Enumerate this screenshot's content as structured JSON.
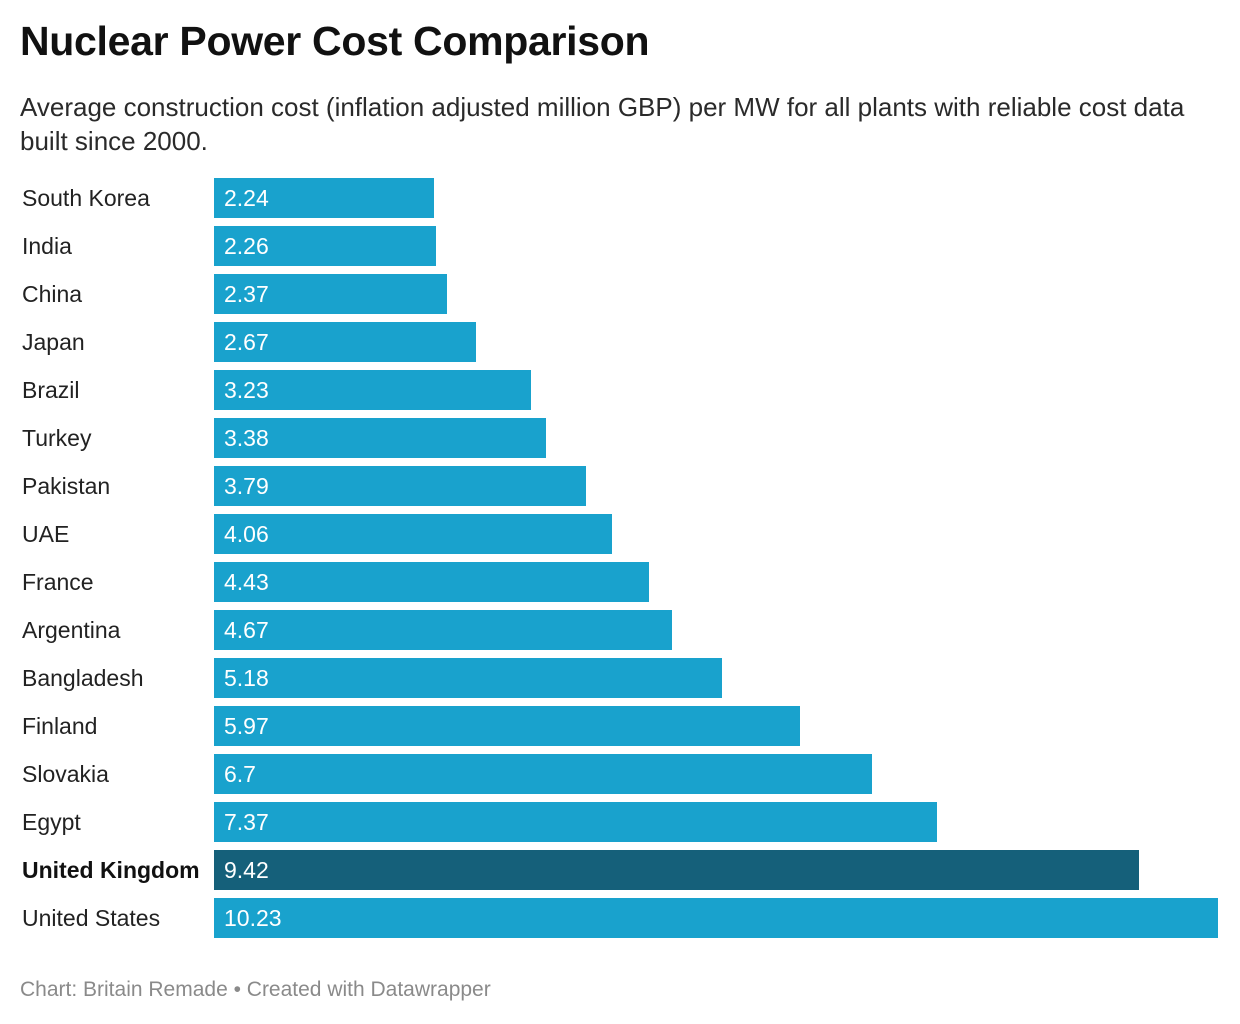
{
  "chart_data": {
    "type": "bar",
    "orientation": "horizontal",
    "title": "Nuclear Power Cost Comparison",
    "subtitle": "Average construction cost (inflation adjusted million GBP) per MW for all plants with reliable cost data built since 2000.",
    "categories": [
      "South Korea",
      "India",
      "China",
      "Japan",
      "Brazil",
      "Turkey",
      "Pakistan",
      "UAE",
      "France",
      "Argentina",
      "Bangladesh",
      "Finland",
      "Slovakia",
      "Egypt",
      "United Kingdom",
      "United States"
    ],
    "values": [
      2.24,
      2.26,
      2.37,
      2.67,
      3.23,
      3.38,
      3.79,
      4.06,
      4.43,
      4.67,
      5.18,
      5.97,
      6.7,
      7.37,
      9.42,
      10.23
    ],
    "value_labels": [
      "2.24",
      "2.26",
      "2.37",
      "2.67",
      "3.23",
      "3.38",
      "3.79",
      "4.06",
      "4.43",
      "4.67",
      "5.18",
      "5.97",
      "6.7",
      "7.37",
      "9.42",
      "10.23"
    ],
    "highlight": "United Kingdom",
    "xlim": [
      0,
      10.23
    ],
    "grid": false,
    "legend": "none",
    "colors": {
      "bar": "#19a2cd",
      "highlight_bar": "#15607a",
      "value_text": "#ffffff"
    },
    "footer": "Chart: Britain Remade • Created with Datawrapper"
  }
}
